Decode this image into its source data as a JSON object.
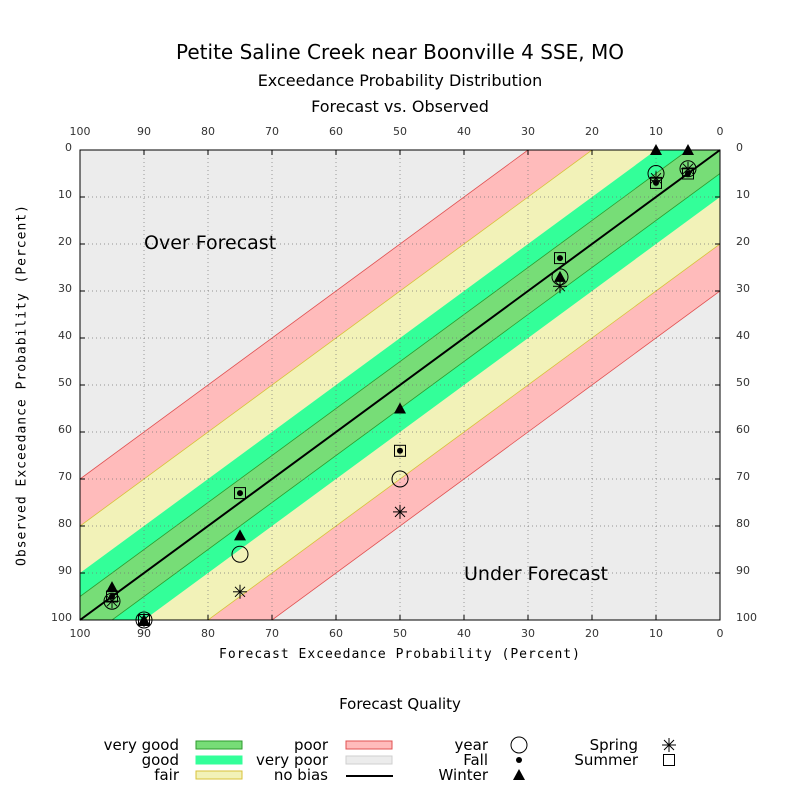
{
  "header": {
    "title": "Petite Saline Creek near Boonville 4 SSE, MO",
    "subtitle": "Exceedance Probability Distribution",
    "subtitle2": "Forecast vs. Observed"
  },
  "regions": {
    "over": "Over Forecast",
    "under": "Under Forecast"
  },
  "chart_data": {
    "type": "scatter",
    "title": "Petite Saline Creek near Boonville 4 SSE, MO",
    "xlabel": "Forecast Exceedance Probability (Percent)",
    "ylabel": "Observed Exceedance Probability (Percent)",
    "xlim": [
      100,
      0
    ],
    "ylim": [
      100,
      0
    ],
    "x_reversed": true,
    "y_reversed": true,
    "xticks": [
      "100",
      "90",
      "80",
      "70",
      "60",
      "50",
      "40",
      "30",
      "20",
      "10",
      "0"
    ],
    "yticks": [
      "0",
      "10",
      "20",
      "30",
      "40",
      "50",
      "60",
      "70",
      "80",
      "90",
      "100"
    ],
    "grid": true,
    "bands": [
      {
        "name": "very good",
        "range": 5,
        "color": "#77dd77"
      },
      {
        "name": "good",
        "range": 10,
        "color": "#33ff99"
      },
      {
        "name": "fair",
        "range": 20,
        "color": "#f2f2b8"
      },
      {
        "name": "poor",
        "range": 30,
        "color": "#ffbbbb"
      },
      {
        "name": "very poor",
        "range": 100,
        "color": "#ececec"
      }
    ],
    "series": [
      {
        "name": "year",
        "marker": "circle",
        "points": [
          [
            95,
            96
          ],
          [
            90,
            100
          ],
          [
            75,
            86
          ],
          [
            50,
            70
          ],
          [
            25,
            27
          ],
          [
            10,
            5
          ],
          [
            5,
            4
          ]
        ]
      },
      {
        "name": "Spring",
        "marker": "asterisk",
        "points": [
          [
            95,
            96
          ],
          [
            90,
            100
          ],
          [
            75,
            94
          ],
          [
            50,
            77
          ],
          [
            25,
            29
          ],
          [
            10,
            6
          ],
          [
            5,
            4
          ]
        ]
      },
      {
        "name": "Summer",
        "marker": "square",
        "points": [
          [
            95,
            95
          ],
          [
            90,
            100
          ],
          [
            75,
            73
          ],
          [
            50,
            64
          ],
          [
            25,
            23
          ],
          [
            10,
            7
          ],
          [
            5,
            5
          ]
        ]
      },
      {
        "name": "Fall",
        "marker": "dot",
        "points": [
          [
            95,
            95
          ],
          [
            90,
            100
          ],
          [
            75,
            73
          ],
          [
            50,
            64
          ],
          [
            25,
            23
          ],
          [
            10,
            7
          ],
          [
            5,
            5
          ]
        ]
      },
      {
        "name": "Winter",
        "marker": "triangle",
        "points": [
          [
            95,
            93
          ],
          [
            90,
            100
          ],
          [
            75,
            82
          ],
          [
            50,
            55
          ],
          [
            25,
            27
          ],
          [
            10,
            0
          ],
          [
            5,
            0
          ]
        ]
      }
    ]
  },
  "legend": {
    "title": "Forecast Quality",
    "quality": [
      {
        "label": "very good",
        "color": "#77dd77",
        "border": "#2e9a2e"
      },
      {
        "label": "good",
        "color": "#33ff99",
        "border": "#33ff99"
      },
      {
        "label": "fair",
        "color": "#f2f2b8",
        "border": "#d8c23a"
      },
      {
        "label": "poor",
        "color": "#ffbbbb",
        "border": "#e05050"
      },
      {
        "label": "very poor",
        "color": "#ececec",
        "border": "#cfcfcf"
      },
      {
        "label": "no bias",
        "color": "#000000",
        "border": "#000000"
      }
    ],
    "markers": [
      {
        "label": "year",
        "marker": "circle"
      },
      {
        "label": "Fall",
        "marker": "dot"
      },
      {
        "label": "Winter",
        "marker": "triangle"
      },
      {
        "label": "Spring",
        "marker": "asterisk"
      },
      {
        "label": "Summer",
        "marker": "square"
      }
    ]
  }
}
